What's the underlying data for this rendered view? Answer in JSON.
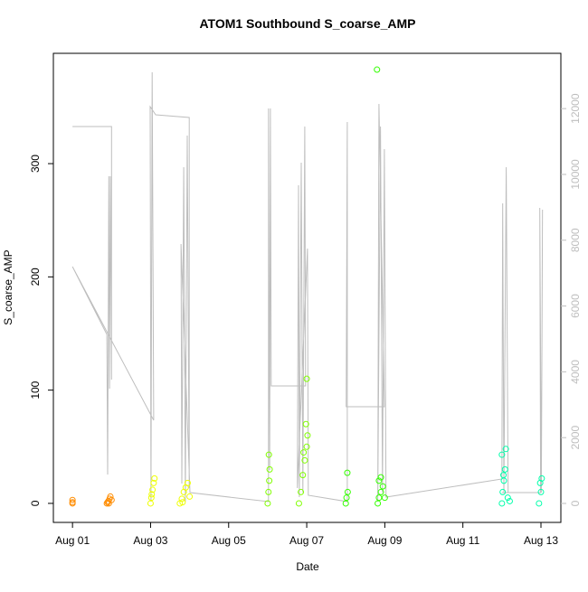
{
  "chart_data": {
    "type": "scatter",
    "title": "ATOM1 Southbound S_coarse_AMP",
    "x_label": "Date",
    "y_label": "S_coarse_AMP",
    "xlim": [
      0.51,
      13.51
    ],
    "xticks": [
      {
        "value": 1,
        "label": "Aug 01"
      },
      {
        "value": 3,
        "label": "Aug 03"
      },
      {
        "value": 5,
        "label": "Aug 05"
      },
      {
        "value": 7,
        "label": "Aug 07"
      },
      {
        "value": 9,
        "label": "Aug 09"
      },
      {
        "value": 11,
        "label": "Aug 11"
      },
      {
        "value": 13,
        "label": "Aug 13"
      }
    ],
    "ylim": [
      -16.8,
      397.4
    ],
    "yticks": [
      0,
      100,
      200,
      300
    ],
    "y2lim": [
      -577,
      13680
    ],
    "y2ticks": [
      0,
      2000,
      4000,
      6000,
      8000,
      10000,
      12000
    ],
    "y2color": "#bebebe",
    "series": [
      {
        "color": "#ff8c00",
        "x": [
          1,
          1,
          1,
          1.88,
          1.9,
          1.92,
          1.95,
          1.97,
          2.0,
          1.93
        ],
        "values": [
          0,
          1,
          3,
          0,
          1,
          2,
          4,
          6,
          3,
          0
        ]
      },
      {
        "color": "#eeff00",
        "x": [
          3.0,
          3.02,
          3.05,
          3.08,
          3.1,
          3.03,
          3.75,
          3.8,
          3.85,
          3.9,
          3.95,
          4.0,
          3.82
        ],
        "values": [
          0,
          5,
          12,
          18,
          22,
          8,
          0,
          4,
          10,
          14,
          18,
          6,
          1
        ]
      },
      {
        "color": "#80ff00",
        "x": [
          6.0,
          6.02,
          6.04,
          6.05,
          6.03,
          6.8,
          6.85,
          6.9,
          6.95,
          7.0,
          7.02,
          6.98,
          6.92,
          7.0
        ],
        "values": [
          0,
          10,
          20,
          30,
          43,
          0,
          10,
          25,
          38,
          50,
          60,
          70,
          45,
          110
        ]
      },
      {
        "color": "#33ff00",
        "x": [
          8.0,
          8.02,
          8.05,
          8.04,
          8.8,
          8.82,
          8.85,
          8.9,
          8.95,
          9.0,
          8.9,
          8.85
        ],
        "values": [
          0,
          5,
          10,
          27,
          383,
          0,
          5,
          10,
          15,
          5,
          23,
          20
        ]
      },
      {
        "color": "#00ffaa",
        "x": [
          12.0,
          12.02,
          12.05,
          12.08,
          12.1,
          12.15,
          12.2,
          12.0,
          12.04,
          12.95,
          13.0,
          13.02,
          12.98
        ],
        "values": [
          0,
          10,
          20,
          30,
          48,
          5,
          2,
          43,
          25,
          0,
          10,
          22,
          18
        ]
      },
      {
        "type": "line",
        "axis": "y2",
        "color": "#bebebe",
        "x": [
          1,
          2.0,
          2.0,
          1.97,
          1.95,
          1.93,
          1.9,
          1.88,
          1,
          3.08,
          3.04,
          3.01,
          2.99,
          3.13,
          3.99,
          3.99,
          3.94,
          3.89,
          3.85,
          3.8,
          3.78,
          4.01,
          6.02,
          6.02,
          6.05,
          6.07,
          6.09,
          6.97,
          6.95,
          6.9,
          6.86,
          6.81,
          6.79,
          6.76,
          7.02,
          7.04,
          8.04,
          8.04,
          8.01,
          8.99,
          8.85,
          8.82,
          8.89,
          8.94,
          8.99,
          9.03,
          12.0,
          12.02,
          12.05,
          12.11,
          12.16,
          12.0,
          12.99,
          12.97,
          13.01,
          13.04
        ],
        "values": [
          11455,
          11455,
          3763,
          9945,
          3489,
          9945,
          879,
          5137,
          7197,
          2527,
          13103,
          55,
          12059,
          11812,
          11729,
          467,
          11180,
          55,
          10219,
          604,
          7884,
          330,
          55,
          12004,
          1016,
          12004,
          3571,
          3571,
          11455,
          330,
          10356,
          192,
          9669,
          467,
          7747,
          247,
          55,
          11592,
          2939,
          2939,
          12142,
          55,
          11455,
          330,
          10768,
          192,
          742,
          9120,
          330,
          10219,
          330,
          330,
          330,
          8983,
          330,
          8928
        ]
      }
    ]
  }
}
